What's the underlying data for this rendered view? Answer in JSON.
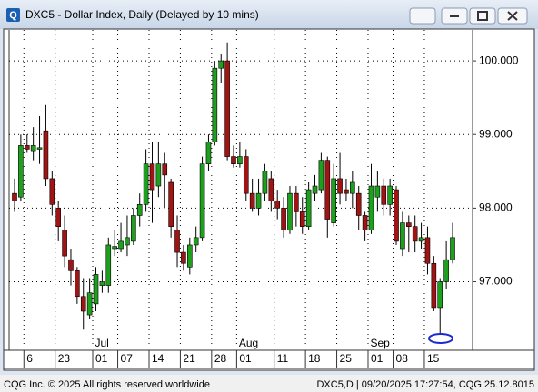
{
  "chart_data": {
    "type": "candlestick",
    "title": "DXC5 - Dollar Index, Daily (Delayed by 10 mins)",
    "categories": [
      null,
      null,
      "6",
      null,
      null,
      null,
      null,
      "23",
      null,
      null,
      null,
      null,
      null,
      "01",
      null,
      null,
      null,
      "07",
      null,
      null,
      null,
      null,
      "14",
      null,
      null,
      null,
      null,
      "21",
      null,
      null,
      null,
      null,
      "28",
      null,
      null,
      null,
      "01",
      null,
      null,
      null,
      null,
      null,
      "11",
      null,
      null,
      null,
      null,
      "18",
      null,
      null,
      null,
      null,
      "25",
      null,
      null,
      null,
      null,
      "01",
      null,
      null,
      null,
      "08",
      null,
      null,
      null,
      null,
      "15",
      null,
      null,
      null,
      null
    ],
    "months": [
      null,
      null,
      null,
      null,
      null,
      null,
      null,
      null,
      null,
      null,
      null,
      null,
      null,
      "Jul",
      null,
      null,
      null,
      null,
      null,
      null,
      null,
      null,
      null,
      null,
      null,
      null,
      null,
      null,
      null,
      null,
      null,
      null,
      null,
      null,
      null,
      null,
      "Aug",
      null,
      null,
      null,
      null,
      null,
      null,
      null,
      null,
      null,
      null,
      null,
      null,
      null,
      null,
      null,
      null,
      null,
      null,
      null,
      null,
      "Sep",
      null,
      null,
      null,
      null,
      null,
      null,
      null,
      null,
      null,
      null,
      null,
      null,
      null
    ],
    "open": [
      98.2,
      98.15,
      98.85,
      98.78,
      98.8,
      99.05,
      98.4,
      98.0,
      97.7,
      97.3,
      97.15,
      96.8,
      96.55,
      96.7,
      96.95,
      96.95,
      97.45,
      97.45,
      97.5,
      97.55,
      97.9,
      98.05,
      98.6,
      98.3,
      98.6,
      98.35,
      97.7,
      97.4,
      97.2,
      97.5,
      97.6,
      98.6,
      98.9,
      99.9,
      100.0,
      98.7,
      98.6,
      98.7,
      98.2,
      98.0,
      98.2,
      98.4,
      98.1,
      98.0,
      97.7,
      98.2,
      97.95,
      97.75,
      98.2,
      98.25,
      98.65,
      97.8,
      98.4,
      98.25,
      98.2,
      98.2,
      97.9,
      97.7,
      98.15,
      98.3,
      98.05,
      98.25,
      97.45,
      97.8,
      97.75,
      97.55,
      97.6,
      97.25,
      96.65,
      97.0,
      97.3
    ],
    "high": [
      98.4,
      99.0,
      99.0,
      99.1,
      99.25,
      99.4,
      98.5,
      98.1,
      97.9,
      97.45,
      97.2,
      97.05,
      97.05,
      97.2,
      97.15,
      97.6,
      97.7,
      97.8,
      97.9,
      98.0,
      98.2,
      98.8,
      98.9,
      98.9,
      98.75,
      98.4,
      97.9,
      97.5,
      97.6,
      97.75,
      98.7,
      99.0,
      100.0,
      100.1,
      100.25,
      98.85,
      98.9,
      98.8,
      98.4,
      98.4,
      98.6,
      98.5,
      98.25,
      98.15,
      98.3,
      98.3,
      98.15,
      98.35,
      98.45,
      98.75,
      98.7,
      98.6,
      98.75,
      98.4,
      98.5,
      98.3,
      97.95,
      98.6,
      98.5,
      98.4,
      98.4,
      98.3,
      97.95,
      97.9,
      97.9,
      97.8,
      97.75,
      97.35,
      97.05,
      97.55,
      97.8
    ],
    "low": [
      97.95,
      98.1,
      98.75,
      98.65,
      98.6,
      98.3,
      97.9,
      97.55,
      97.2,
      96.95,
      96.7,
      96.35,
      96.5,
      96.6,
      96.85,
      96.85,
      97.35,
      97.4,
      97.35,
      97.5,
      97.75,
      97.95,
      97.8,
      98.15,
      98.0,
      97.6,
      97.2,
      97.15,
      97.1,
      97.4,
      97.55,
      98.5,
      98.85,
      99.7,
      98.65,
      98.55,
      98.55,
      98.1,
      97.95,
      97.9,
      98.1,
      97.95,
      97.85,
      97.6,
      97.65,
      97.75,
      97.65,
      97.7,
      98.1,
      98.2,
      97.6,
      97.75,
      98.05,
      98.1,
      98.0,
      97.7,
      97.55,
      97.65,
      97.95,
      97.9,
      97.9,
      97.5,
      97.35,
      97.4,
      97.4,
      97.45,
      97.1,
      96.6,
      96.3,
      96.9,
      97.25
    ],
    "close": [
      98.1,
      98.85,
      98.8,
      98.85,
      98.82,
      98.4,
      98.05,
      97.75,
      97.35,
      97.15,
      96.8,
      96.6,
      96.85,
      97.1,
      97.0,
      97.5,
      97.48,
      97.55,
      97.6,
      97.9,
      98.05,
      98.6,
      98.25,
      98.6,
      98.45,
      97.75,
      97.4,
      97.25,
      97.5,
      97.6,
      98.6,
      98.9,
      99.9,
      100.0,
      98.7,
      98.6,
      98.7,
      98.2,
      98.0,
      98.2,
      98.5,
      98.1,
      98.0,
      97.7,
      98.2,
      97.95,
      97.75,
      98.25,
      98.3,
      98.65,
      97.85,
      98.4,
      98.2,
      98.2,
      98.35,
      97.9,
      97.7,
      98.3,
      98.3,
      98.05,
      98.3,
      97.55,
      97.8,
      97.75,
      97.55,
      97.6,
      97.25,
      96.65,
      97.0,
      97.3,
      97.6
    ],
    "up_color": "#1ea01e",
    "down_color": "#a01414",
    "ylim": [
      96.07,
      100.42
    ],
    "yticks": [
      {
        "value": 97,
        "label": "97.000"
      },
      {
        "value": 98,
        "label": "98.000"
      },
      {
        "value": 99,
        "label": "99.000"
      },
      {
        "value": 100,
        "label": "100.000"
      }
    ],
    "grid": true
  },
  "footer": {
    "left": "CQG Inc. © 2025 All rights reserved worldwide",
    "right": "DXC5,D | 09/20/2025 17:27:54, CQG 25.12.8015"
  }
}
